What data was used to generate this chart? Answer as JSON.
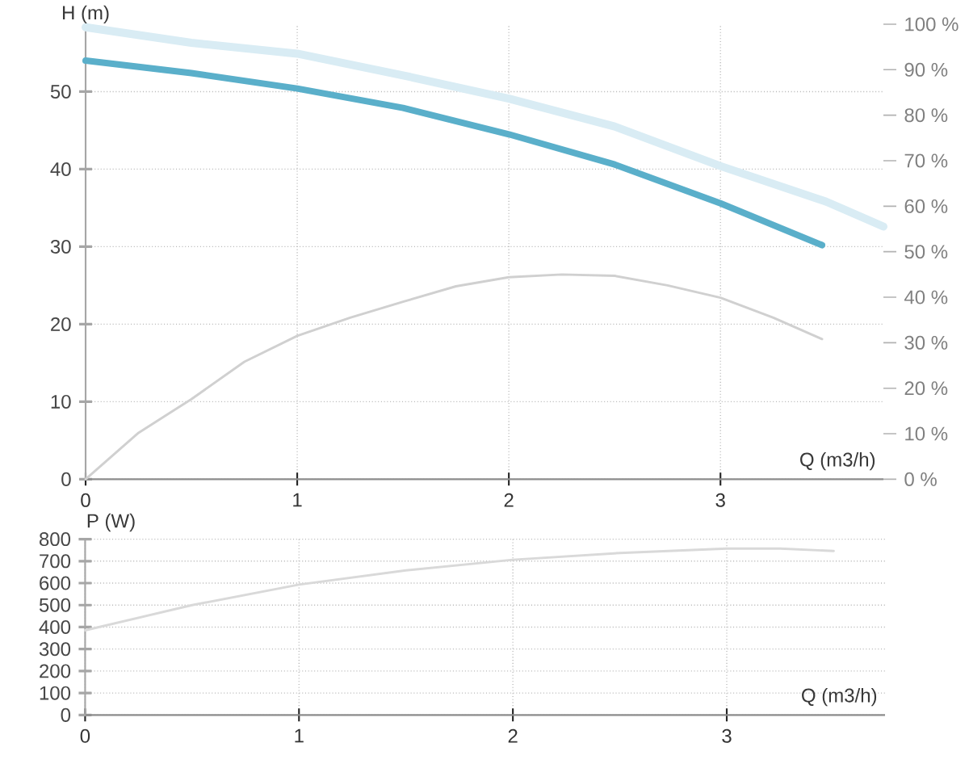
{
  "chart_data": [
    {
      "type": "line",
      "xlabel": "Q (m3/h)",
      "ylabel": "H (m)",
      "xlim": [
        0,
        3.77
      ],
      "xticks": [
        0,
        1,
        2,
        3
      ],
      "ylim": [
        0,
        58.7
      ],
      "yticks": [
        0,
        10,
        20,
        30,
        40,
        50
      ],
      "y2lim": [
        0,
        100
      ],
      "y2ticks": [
        {
          "value": 0,
          "label": "0 %"
        },
        {
          "value": 10,
          "label": "10 %"
        },
        {
          "value": 20,
          "label": "20 %"
        },
        {
          "value": 30,
          "label": "30 %"
        },
        {
          "value": 40,
          "label": "40 %"
        },
        {
          "value": 50,
          "label": "50 %"
        },
        {
          "value": 60,
          "label": "60 %"
        },
        {
          "value": 70,
          "label": "70 %"
        },
        {
          "value": 80,
          "label": "80 %"
        },
        {
          "value": 90,
          "label": "90 %"
        },
        {
          "value": 100,
          "label": "100 %"
        }
      ],
      "grid": true,
      "series": [
        {
          "color": "#d9ecf4",
          "x": [
            0,
            0.5,
            1,
            1.5,
            2,
            2.5,
            3,
            3.5,
            3.77
          ],
          "values": [
            58.3,
            56.3,
            54.9,
            52.1,
            49.1,
            45.5,
            40.4,
            35.8,
            32.6
          ]
        },
        {
          "color": "#5aafca",
          "x": [
            0,
            0.5,
            1,
            1.5,
            2,
            2.5,
            3,
            3.48
          ],
          "values": [
            54.0,
            52.4,
            50.4,
            47.9,
            44.5,
            40.6,
            35.6,
            30.2
          ]
        },
        {
          "color": "#d0d0d0",
          "axis": "y2",
          "x": [
            0,
            0.25,
            0.5,
            0.75,
            1,
            1.25,
            1.5,
            1.75,
            2,
            2.25,
            2.5,
            2.75,
            3,
            3.25,
            3.48
          ],
          "values": [
            0,
            10.2,
            17.6,
            25.8,
            31.5,
            35.5,
            39.0,
            42.4,
            44.4,
            45.0,
            44.7,
            42.6,
            39.9,
            35.5,
            30.8
          ]
        }
      ]
    },
    {
      "type": "line",
      "xlabel": "Q (m3/h)",
      "ylabel": "P (W)",
      "xlim": [
        0,
        3.74
      ],
      "xticks": [
        0,
        1,
        2,
        3
      ],
      "ylim": [
        0,
        800
      ],
      "yticks": [
        0,
        100,
        200,
        300,
        400,
        500,
        600,
        700,
        800
      ],
      "grid": true,
      "series": [
        {
          "color": "#d9d9d9",
          "x": [
            0,
            0.5,
            1,
            1.5,
            2,
            2.5,
            3,
            3.25,
            3.5
          ],
          "values": [
            385,
            500,
            593,
            658,
            706,
            737,
            757,
            757,
            746
          ]
        }
      ]
    }
  ]
}
